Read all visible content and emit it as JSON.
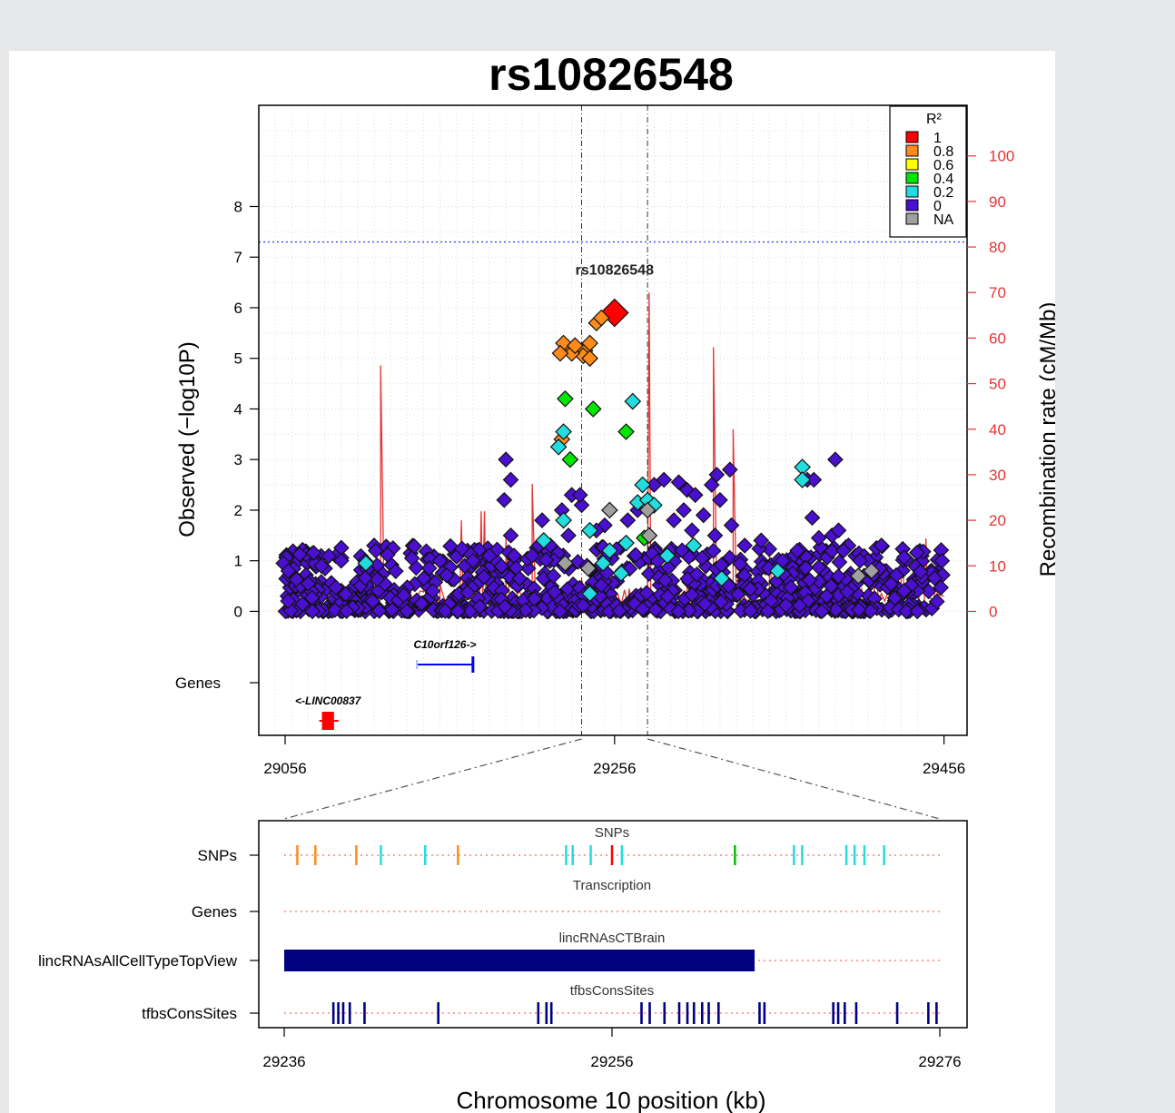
{
  "chart_data": {
    "type": "scatter",
    "title": "rs10826548",
    "index_snp": {
      "label": "rs10826548",
      "x": 29256,
      "y": 5.9
    },
    "ylabel": "Observed (−log10P)",
    "y2label": "Recombination rate (cM/Mb)",
    "xlabel": "Chromosome 10 position (kb)",
    "xlim": [
      29040,
      29470
    ],
    "ylim": [
      -2.45,
      10.0
    ],
    "yticks": [
      "0",
      "1",
      "2",
      "3",
      "4",
      "5",
      "6",
      "7",
      "8"
    ],
    "y2lim": [
      0,
      100
    ],
    "y2ticks": [
      "0",
      "10",
      "20",
      "30",
      "40",
      "50",
      "60",
      "70",
      "80",
      "90",
      "100"
    ],
    "xticks": [
      "29056",
      "29256",
      "29456"
    ],
    "genes_label": "Genes",
    "significance_line": 7.3,
    "dashed_markers": [
      29236,
      29276
    ],
    "legend": {
      "title": "R²",
      "entries": [
        {
          "label": "1",
          "color": "#ff0000"
        },
        {
          "label": "0.8",
          "color": "#ff8c1a"
        },
        {
          "label": "0.6",
          "color": "#ffff00"
        },
        {
          "label": "0.4",
          "color": "#00e600"
        },
        {
          "label": "0.2",
          "color": "#22dddd"
        },
        {
          "label": "0",
          "color": "#4b0fcf"
        },
        {
          "label": "NA",
          "color": "#a0a0a0"
        }
      ]
    },
    "colored_points": [
      {
        "x": 29256,
        "y": 5.9,
        "r2": "1"
      },
      {
        "x": 29245,
        "y": 5.7,
        "r2": "0.8"
      },
      {
        "x": 29248,
        "y": 5.8,
        "r2": "0.8"
      },
      {
        "x": 29238,
        "y": 5.15,
        "r2": "0.8"
      },
      {
        "x": 29241,
        "y": 5.3,
        "r2": "0.8"
      },
      {
        "x": 29237,
        "y": 5.05,
        "r2": "0.8"
      },
      {
        "x": 29241,
        "y": 5.0,
        "r2": "0.8"
      },
      {
        "x": 29228,
        "y": 5.2,
        "r2": "0.8"
      },
      {
        "x": 29230,
        "y": 5.1,
        "r2": "0.8"
      },
      {
        "x": 29225,
        "y": 5.3,
        "r2": "0.8"
      },
      {
        "x": 29223,
        "y": 5.1,
        "r2": "0.8"
      },
      {
        "x": 29232,
        "y": 5.25,
        "r2": "0.8"
      },
      {
        "x": 29224,
        "y": 3.4,
        "r2": "0.8"
      },
      {
        "x": 29226,
        "y": 4.2,
        "r2": "0.4"
      },
      {
        "x": 29243,
        "y": 4.0,
        "r2": "0.4"
      },
      {
        "x": 29263,
        "y": 3.55,
        "r2": "0.4"
      },
      {
        "x": 29229,
        "y": 3.0,
        "r2": "0.4"
      },
      {
        "x": 29267,
        "y": 4.15,
        "r2": "0.2"
      },
      {
        "x": 29225,
        "y": 3.55,
        "r2": "0.2"
      },
      {
        "x": 29222,
        "y": 3.25,
        "r2": "0.2"
      },
      {
        "x": 29225,
        "y": 1.8,
        "r2": "0.2"
      },
      {
        "x": 29273,
        "y": 2.5,
        "r2": "0.2"
      },
      {
        "x": 29270,
        "y": 2.15,
        "r2": "0.2"
      },
      {
        "x": 29276,
        "y": 2.2,
        "r2": "0.2"
      },
      {
        "x": 29280,
        "y": 2.1,
        "r2": "0.2"
      },
      {
        "x": 29241,
        "y": 1.6,
        "r2": "0.2"
      },
      {
        "x": 29253,
        "y": 1.2,
        "r2": "0.2"
      },
      {
        "x": 29263,
        "y": 1.35,
        "r2": "0.2"
      },
      {
        "x": 29249,
        "y": 0.95,
        "r2": "0.2"
      },
      {
        "x": 29260,
        "y": 0.75,
        "r2": "0.2"
      },
      {
        "x": 29288,
        "y": 1.1,
        "r2": "0.2"
      },
      {
        "x": 29304,
        "y": 1.3,
        "r2": "0.2"
      },
      {
        "x": 29241,
        "y": 0.35,
        "r2": "0.2"
      },
      {
        "x": 29213,
        "y": 1.4,
        "r2": "0.2"
      },
      {
        "x": 29370,
        "y": 2.85,
        "r2": "0.2"
      },
      {
        "x": 29370,
        "y": 2.6,
        "r2": "0.2"
      },
      {
        "x": 29105,
        "y": 0.95,
        "r2": "0.2"
      },
      {
        "x": 29321,
        "y": 0.65,
        "r2": "0.2"
      },
      {
        "x": 29355,
        "y": 0.8,
        "r2": "0.2"
      },
      {
        "x": 29274,
        "y": 1.45,
        "r2": "0.4"
      },
      {
        "x": 29253,
        "y": 2.0,
        "r2": "NA"
      },
      {
        "x": 29276,
        "y": 2.0,
        "r2": "NA"
      },
      {
        "x": 29226,
        "y": 0.95,
        "r2": "NA"
      },
      {
        "x": 29240,
        "y": 0.85,
        "r2": "NA"
      },
      {
        "x": 29277,
        "y": 1.5,
        "r2": "NA"
      },
      {
        "x": 29404,
        "y": 0.7,
        "r2": "NA"
      },
      {
        "x": 29412,
        "y": 0.8,
        "r2": "NA"
      }
    ],
    "background_points": [
      {
        "x": 29190,
        "y": 3.0
      },
      {
        "x": 29193,
        "y": 2.6
      },
      {
        "x": 29189,
        "y": 2.2
      },
      {
        "x": 29193,
        "y": 1.5
      },
      {
        "x": 29195,
        "y": 1.1
      },
      {
        "x": 29212,
        "y": 1.8
      },
      {
        "x": 29230,
        "y": 2.3
      },
      {
        "x": 29236,
        "y": 2.1
      },
      {
        "x": 29235,
        "y": 2.3
      },
      {
        "x": 29224,
        "y": 2.0
      },
      {
        "x": 29210,
        "y": 1.3
      },
      {
        "x": 29206,
        "y": 1.1
      },
      {
        "x": 29180,
        "y": 1.1
      },
      {
        "x": 29150,
        "y": 1.0
      },
      {
        "x": 29133,
        "y": 1.05
      },
      {
        "x": 29110,
        "y": 1.3
      },
      {
        "x": 29111,
        "y": 1.2
      },
      {
        "x": 29090,
        "y": 1.0
      },
      {
        "x": 29078,
        "y": 0.9
      },
      {
        "x": 29055,
        "y": 0.95
      },
      {
        "x": 29058,
        "y": 0.8
      },
      {
        "x": 29280,
        "y": 2.5
      },
      {
        "x": 29286,
        "y": 2.6
      },
      {
        "x": 29295,
        "y": 2.55
      },
      {
        "x": 29300,
        "y": 2.4
      },
      {
        "x": 29305,
        "y": 2.3
      },
      {
        "x": 29315,
        "y": 2.5
      },
      {
        "x": 29318,
        "y": 2.7
      },
      {
        "x": 29320,
        "y": 2.2
      },
      {
        "x": 29326,
        "y": 2.8
      },
      {
        "x": 29298,
        "y": 2.0
      },
      {
        "x": 29292,
        "y": 1.8
      },
      {
        "x": 29303,
        "y": 1.6
      },
      {
        "x": 29310,
        "y": 1.9
      },
      {
        "x": 29317,
        "y": 1.5
      },
      {
        "x": 29327,
        "y": 1.7
      },
      {
        "x": 29335,
        "y": 1.3
      },
      {
        "x": 29345,
        "y": 1.4
      },
      {
        "x": 29373,
        "y": 2.6
      },
      {
        "x": 29377,
        "y": 2.6
      },
      {
        "x": 29390,
        "y": 3.0
      },
      {
        "x": 29376,
        "y": 1.85
      },
      {
        "x": 29380,
        "y": 1.45
      },
      {
        "x": 29388,
        "y": 1.5
      },
      {
        "x": 29392,
        "y": 1.6
      },
      {
        "x": 29398,
        "y": 1.3
      },
      {
        "x": 29395,
        "y": 1.2
      },
      {
        "x": 29405,
        "y": 1.0
      },
      {
        "x": 29415,
        "y": 1.25
      },
      {
        "x": 29418,
        "y": 1.3
      },
      {
        "x": 29417,
        "y": 0.85
      },
      {
        "x": 29367,
        "y": 1.2
      },
      {
        "x": 29358,
        "y": 1.0
      },
      {
        "x": 29270,
        "y": 2.0
      },
      {
        "x": 29264,
        "y": 1.8
      },
      {
        "x": 29250,
        "y": 1.7
      },
      {
        "x": 29245,
        "y": 1.6
      },
      {
        "x": 29228,
        "y": 1.5
      },
      {
        "x": 29217,
        "y": 1.3
      },
      {
        "x": 29165,
        "y": 0.9
      },
      {
        "x": 29170,
        "y": 1.0
      }
    ],
    "recombination_peaks": [
      {
        "x": 29114,
        "y": 54
      },
      {
        "x": 29163,
        "y": 20
      },
      {
        "x": 29175,
        "y": 22
      },
      {
        "x": 29177,
        "y": 22
      },
      {
        "x": 29190,
        "y": 16
      },
      {
        "x": 29206,
        "y": 28
      },
      {
        "x": 29277,
        "y": 70
      },
      {
        "x": 29316,
        "y": 58
      },
      {
        "x": 29328,
        "y": 40
      },
      {
        "x": 29079,
        "y": 6
      },
      {
        "x": 29140,
        "y": 7
      },
      {
        "x": 29150,
        "y": 6
      },
      {
        "x": 29350,
        "y": 12
      },
      {
        "x": 29392,
        "y": 12
      },
      {
        "x": 29415,
        "y": 14
      },
      {
        "x": 29236,
        "y": 7
      },
      {
        "x": 29248,
        "y": 6
      },
      {
        "x": 29265,
        "y": 5
      },
      {
        "x": 29292,
        "y": 6
      },
      {
        "x": 29300,
        "y": 8
      },
      {
        "x": 29338,
        "y": 6
      },
      {
        "x": 29360,
        "y": 5
      },
      {
        "x": 29376,
        "y": 8
      },
      {
        "x": 29430,
        "y": 15
      },
      {
        "x": 29439,
        "y": 9
      },
      {
        "x": 29445,
        "y": 16
      },
      {
        "x": 29451,
        "y": 8
      }
    ],
    "genes": [
      {
        "label": "C10orf126->",
        "start": 29136,
        "end": 29170,
        "row": 1,
        "color": "#0000ff"
      },
      {
        "label": "<-LINC00837",
        "start": 29080,
        "end": 29084,
        "row": 2,
        "color": "#ff0000"
      }
    ],
    "detail": {
      "xlim": [
        29236,
        29276
      ],
      "xticks": [
        "29236",
        "29256",
        "29276"
      ],
      "tracks": [
        {
          "name": "SNPs",
          "title": "SNPs"
        },
        {
          "name": "Genes",
          "title": "Transcription"
        },
        {
          "name": "lincRNAsAllCellTypeTopView",
          "title": "lincRNAsCTBrain"
        },
        {
          "name": "tfbsConsSites",
          "title": "tfbsConsSites"
        }
      ],
      "snp_marks": [
        {
          "x": 29236.8,
          "color": "#ff8c1a"
        },
        {
          "x": 29237.9,
          "color": "#ff8c1a"
        },
        {
          "x": 29240.4,
          "color": "#ff8c1a"
        },
        {
          "x": 29241.9,
          "color": "#22dddd"
        },
        {
          "x": 29244.6,
          "color": "#22dddd"
        },
        {
          "x": 29246.6,
          "color": "#ff8c1a"
        },
        {
          "x": 29253.2,
          "color": "#22dddd"
        },
        {
          "x": 29253.6,
          "color": "#22dddd"
        },
        {
          "x": 29254.7,
          "color": "#22dddd"
        },
        {
          "x": 29256.0,
          "color": "#ff0000"
        },
        {
          "x": 29256.6,
          "color": "#22dddd"
        },
        {
          "x": 29263.5,
          "color": "#00c000"
        },
        {
          "x": 29267.1,
          "color": "#22dddd"
        },
        {
          "x": 29267.6,
          "color": "#22dddd"
        },
        {
          "x": 29270.3,
          "color": "#22dddd"
        },
        {
          "x": 29270.8,
          "color": "#22dddd"
        },
        {
          "x": 29271.4,
          "color": "#22dddd"
        },
        {
          "x": 29272.6,
          "color": "#22dddd"
        }
      ],
      "lincrna_block": {
        "start": 29236,
        "end": 29264.7,
        "color": "#000080"
      },
      "tfbs_marks": [
        29239.0,
        29239.3,
        29239.6,
        29240.0,
        29240.9,
        29245.4,
        29251.5,
        29252.0,
        29252.3,
        29257.8,
        29258.3,
        29259.2,
        29260.1,
        29260.6,
        29261.0,
        29261.5,
        29261.9,
        29262.5,
        29265.0,
        29265.3,
        29269.5,
        29269.8,
        29270.2,
        29270.9,
        29273.4,
        29275.3,
        29275.8
      ],
      "tfbs_color": "#000080"
    }
  }
}
